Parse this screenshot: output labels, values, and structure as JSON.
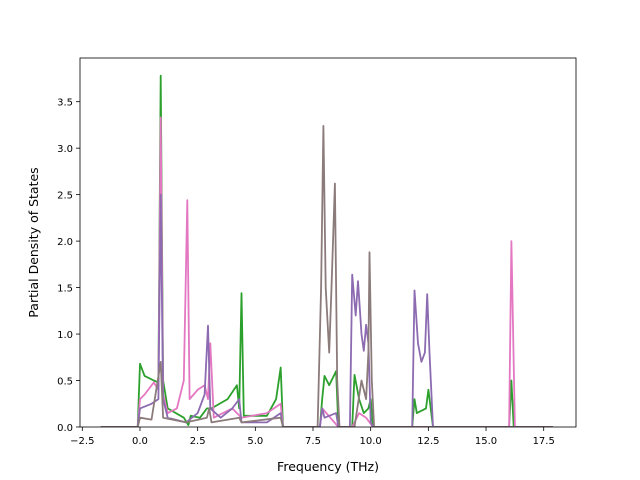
{
  "chart_data": {
    "type": "line",
    "title": "",
    "xlabel": "Frequency (THz)",
    "ylabel": "Partial Density of States",
    "xlim": [
      -2.6,
      18.9
    ],
    "ylim": [
      0.0,
      3.97
    ],
    "grid": false,
    "legend": "none",
    "x_ticks": [
      -2.5,
      0.0,
      2.5,
      5.0,
      7.5,
      10.0,
      12.5,
      15.0,
      17.5
    ],
    "x_tick_labels": [
      "−2.5",
      "0.0",
      "2.5",
      "5.0",
      "7.5",
      "10.0",
      "12.5",
      "15.0",
      "17.5"
    ],
    "y_ticks": [
      0.0,
      0.5,
      1.0,
      1.5,
      2.0,
      2.5,
      3.0,
      3.5
    ],
    "y_tick_labels": [
      "0.0",
      "0.5",
      "1.0",
      "1.5",
      "2.0",
      "2.5",
      "3.0",
      "3.5"
    ],
    "series": [
      {
        "color": "#2ca02c",
        "points": [
          [
            -1.7,
            0
          ],
          [
            -0.1,
            0
          ],
          [
            0.0,
            0.68
          ],
          [
            0.2,
            0.55
          ],
          [
            0.6,
            0.5
          ],
          [
            0.8,
            0.48
          ],
          [
            0.9,
            3.78
          ],
          [
            1.0,
            0.5
          ],
          [
            1.2,
            0.2
          ],
          [
            1.9,
            0.1
          ],
          [
            2.1,
            0.02
          ],
          [
            2.2,
            0.12
          ],
          [
            2.6,
            0.1
          ],
          [
            2.9,
            0.2
          ],
          [
            3.1,
            0.2
          ],
          [
            3.8,
            0.3
          ],
          [
            4.2,
            0.45
          ],
          [
            4.3,
            0.2
          ],
          [
            4.4,
            1.44
          ],
          [
            4.5,
            0.12
          ],
          [
            5.5,
            0.12
          ],
          [
            5.9,
            0.3
          ],
          [
            6.1,
            0.64
          ],
          [
            6.2,
            0
          ],
          [
            7.8,
            0
          ],
          [
            7.9,
            0.3
          ],
          [
            8.0,
            0.55
          ],
          [
            8.2,
            0.45
          ],
          [
            8.5,
            0.6
          ],
          [
            8.6,
            0
          ],
          [
            9.2,
            0
          ],
          [
            9.3,
            0.56
          ],
          [
            9.5,
            0.3
          ],
          [
            9.7,
            0.15
          ],
          [
            9.9,
            0.2
          ],
          [
            10.0,
            0.3
          ],
          [
            10.1,
            0
          ],
          [
            11.8,
            0
          ],
          [
            11.9,
            0.3
          ],
          [
            12.0,
            0.15
          ],
          [
            12.4,
            0.2
          ],
          [
            12.5,
            0.4
          ],
          [
            12.7,
            0
          ],
          [
            16.0,
            0
          ],
          [
            16.1,
            0.5
          ],
          [
            16.2,
            0
          ],
          [
            17.9,
            0
          ]
        ]
      },
      {
        "color": "#e377c2",
        "points": [
          [
            -1.7,
            0
          ],
          [
            -0.1,
            0
          ],
          [
            0.0,
            0.3
          ],
          [
            0.2,
            0.35
          ],
          [
            0.6,
            0.48
          ],
          [
            0.8,
            0.4
          ],
          [
            0.9,
            3.33
          ],
          [
            1.0,
            0.35
          ],
          [
            1.2,
            0.15
          ],
          [
            1.6,
            0.2
          ],
          [
            1.9,
            0.5
          ],
          [
            2.05,
            2.44
          ],
          [
            2.15,
            0.3
          ],
          [
            2.5,
            0.4
          ],
          [
            2.8,
            0.45
          ],
          [
            2.95,
            0.3
          ],
          [
            3.05,
            0.9
          ],
          [
            3.2,
            0.1
          ],
          [
            3.6,
            0.15
          ],
          [
            4.0,
            0.2
          ],
          [
            4.4,
            0.1
          ],
          [
            5.5,
            0.15
          ],
          [
            6.1,
            0.25
          ],
          [
            6.2,
            0
          ],
          [
            7.8,
            0
          ],
          [
            7.9,
            0.2
          ],
          [
            8.6,
            0
          ],
          [
            9.2,
            0
          ],
          [
            9.5,
            0.15
          ],
          [
            9.8,
            0.1
          ],
          [
            10.1,
            0
          ],
          [
            11.9,
            0
          ],
          [
            12.7,
            0
          ],
          [
            16.0,
            0
          ],
          [
            16.1,
            2.0
          ],
          [
            16.25,
            0
          ],
          [
            17.9,
            0
          ]
        ]
      },
      {
        "color": "#8c6bb1",
        "points": [
          [
            -1.7,
            0
          ],
          [
            -0.1,
            0
          ],
          [
            0.0,
            0.2
          ],
          [
            0.5,
            0.25
          ],
          [
            0.8,
            0.3
          ],
          [
            0.9,
            2.5
          ],
          [
            1.0,
            0.3
          ],
          [
            1.2,
            0.1
          ],
          [
            2.0,
            0.05
          ],
          [
            2.5,
            0.15
          ],
          [
            2.8,
            0.35
          ],
          [
            2.95,
            1.09
          ],
          [
            3.05,
            0.2
          ],
          [
            3.5,
            0.1
          ],
          [
            4.0,
            0.2
          ],
          [
            4.3,
            0.3
          ],
          [
            4.4,
            0.05
          ],
          [
            5.5,
            0.05
          ],
          [
            6.1,
            0.15
          ],
          [
            6.2,
            0
          ],
          [
            7.8,
            0
          ],
          [
            7.9,
            0.2
          ],
          [
            8.0,
            0.1
          ],
          [
            8.5,
            0.15
          ],
          [
            8.6,
            0
          ],
          [
            9.1,
            0
          ],
          [
            9.2,
            1.64
          ],
          [
            9.35,
            1.2
          ],
          [
            9.45,
            1.57
          ],
          [
            9.6,
            1.0
          ],
          [
            9.7,
            0.82
          ],
          [
            9.8,
            1.1
          ],
          [
            9.9,
            0.9
          ],
          [
            10.0,
            0.05
          ],
          [
            10.1,
            0
          ],
          [
            11.8,
            0
          ],
          [
            11.9,
            1.47
          ],
          [
            12.05,
            0.9
          ],
          [
            12.2,
            0.7
          ],
          [
            12.35,
            0.8
          ],
          [
            12.45,
            1.43
          ],
          [
            12.55,
            0.8
          ],
          [
            12.7,
            0
          ],
          [
            16.0,
            0
          ],
          [
            16.2,
            0
          ],
          [
            17.9,
            0
          ]
        ]
      },
      {
        "color": "#8c7b7b",
        "points": [
          [
            -1.7,
            0
          ],
          [
            -0.1,
            0
          ],
          [
            0.0,
            0.1
          ],
          [
            0.5,
            0.08
          ],
          [
            0.9,
            0.7
          ],
          [
            1.0,
            0.1
          ],
          [
            2.0,
            0.05
          ],
          [
            2.9,
            0.1
          ],
          [
            3.0,
            0.2
          ],
          [
            3.1,
            0.05
          ],
          [
            4.3,
            0.1
          ],
          [
            4.4,
            0.05
          ],
          [
            6.1,
            0.1
          ],
          [
            6.2,
            0
          ],
          [
            7.7,
            0
          ],
          [
            7.85,
            1.5
          ],
          [
            7.95,
            3.24
          ],
          [
            8.05,
            1.5
          ],
          [
            8.2,
            0.8
          ],
          [
            8.3,
            1.5
          ],
          [
            8.45,
            2.62
          ],
          [
            8.55,
            0.5
          ],
          [
            8.65,
            0
          ],
          [
            9.3,
            0
          ],
          [
            9.6,
            0.5
          ],
          [
            9.8,
            0.3
          ],
          [
            9.9,
            0.8
          ],
          [
            9.95,
            1.88
          ],
          [
            10.05,
            0.5
          ],
          [
            10.15,
            0
          ],
          [
            12.0,
            0
          ],
          [
            16.0,
            0
          ],
          [
            17.9,
            0
          ]
        ]
      }
    ]
  }
}
